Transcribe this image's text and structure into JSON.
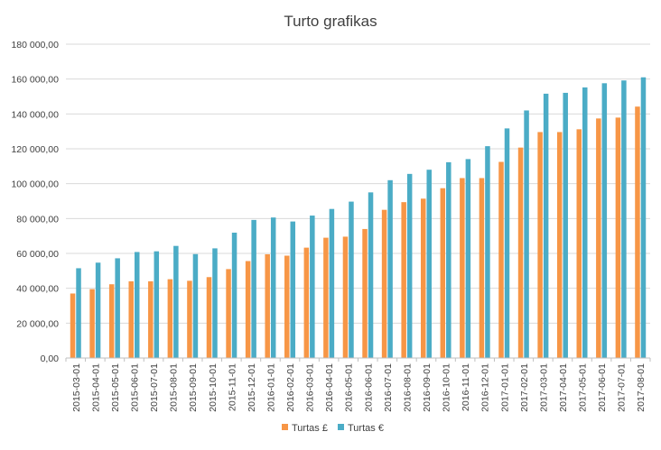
{
  "chart_data": {
    "type": "bar",
    "title": "Turto grafikas",
    "xlabel": "",
    "ylabel": "",
    "ylim": [
      0,
      180000
    ],
    "yticks": [
      0,
      20000,
      40000,
      60000,
      80000,
      100000,
      120000,
      140000,
      160000,
      180000
    ],
    "ytick_labels": [
      "0,00",
      "20 000,00",
      "40 000,00",
      "60 000,00",
      "80 000,00",
      "100 000,00",
      "120 000,00",
      "140 000,00",
      "160 000,00",
      "180 000,00"
    ],
    "grid": "horizontal",
    "legend_position": "bottom",
    "categories": [
      "2015-03-01",
      "2015-04-01",
      "2015-05-01",
      "2015-06-01",
      "2015-07-01",
      "2015-08-01",
      "2015-09-01",
      "2015-10-01",
      "2015-11-01",
      "2015-12-01",
      "2016-01-01",
      "2016-02-01",
      "2016-03-01",
      "2016-04-01",
      "2016-05-01",
      "2016-06-01",
      "2016-07-01",
      "2016-08-01",
      "2016-09-01",
      "2016-10-01",
      "2016-11-01",
      "2016-12-01",
      "2017-01-01",
      "2017-02-01",
      "2017-03-01",
      "2017-04-01",
      "2017-05-01",
      "2017-06-01",
      "2017-07-01",
      "2017-08-01"
    ],
    "series": [
      {
        "name": "Turtas £",
        "color": "#f79646",
        "values": [
          37000,
          39500,
          42300,
          44000,
          44000,
          45200,
          44300,
          46400,
          51000,
          55600,
          59500,
          58700,
          63300,
          69000,
          69600,
          74000,
          85000,
          89400,
          91400,
          97400,
          103200,
          103200,
          112500,
          120700,
          129600,
          129600,
          131200,
          137400,
          137900,
          144200
        ]
      },
      {
        "name": "Turtas €",
        "color": "#4bacc6",
        "values": [
          51500,
          54700,
          57200,
          60800,
          61200,
          64300,
          59600,
          62900,
          71900,
          79200,
          80600,
          78300,
          81700,
          85500,
          89700,
          95000,
          102000,
          105600,
          108000,
          112300,
          114100,
          121500,
          131700,
          142000,
          151600,
          152100,
          155200,
          157600,
          159200,
          161000
        ]
      }
    ]
  }
}
